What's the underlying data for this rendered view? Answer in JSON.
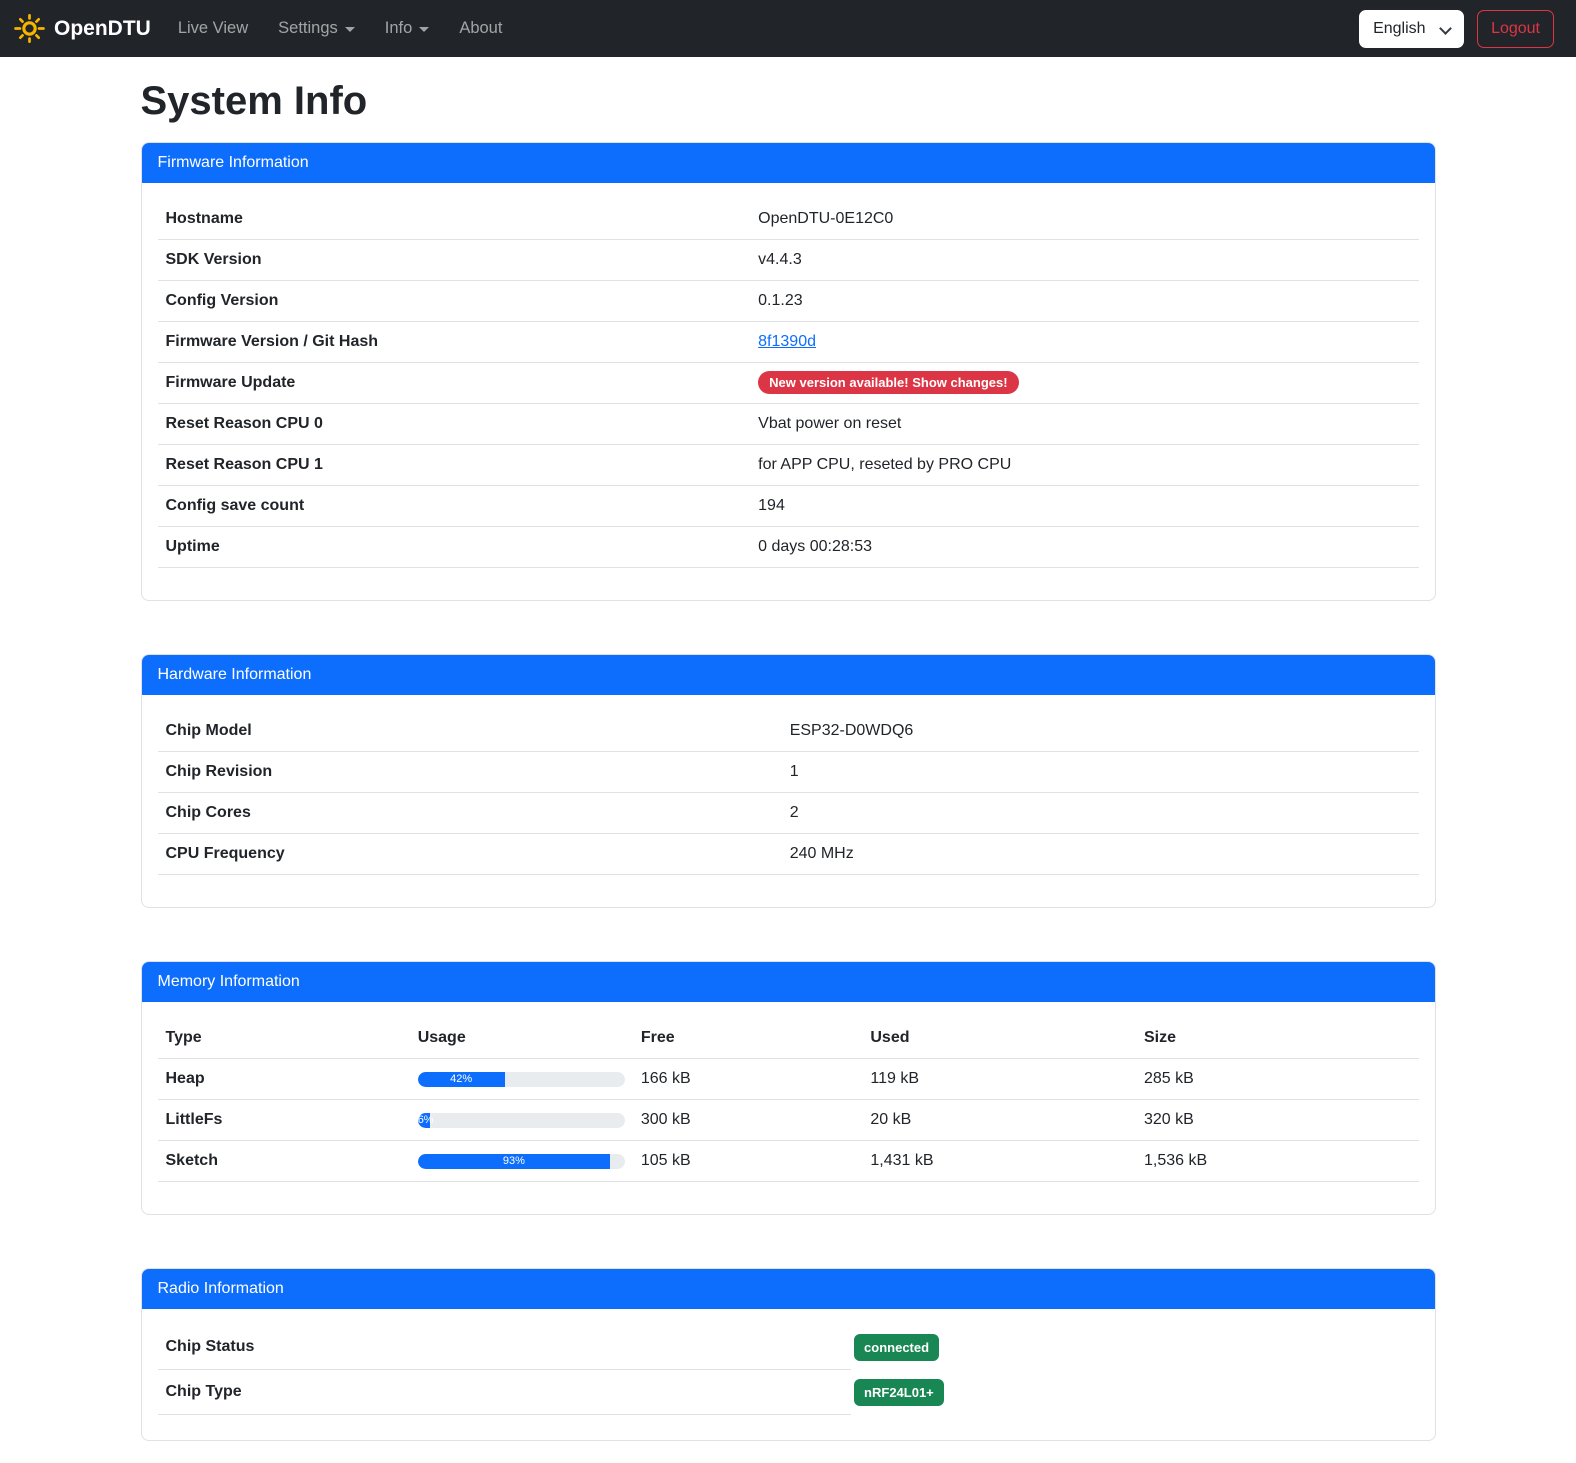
{
  "navbar": {
    "brand": "OpenDTU",
    "items": [
      {
        "label": "Live View",
        "has_caret": false
      },
      {
        "label": "Settings",
        "has_caret": true
      },
      {
        "label": "Info",
        "has_caret": true
      },
      {
        "label": "About",
        "has_caret": false
      }
    ],
    "language_selected": "English",
    "logout_label": "Logout"
  },
  "page": {
    "title": "System Info"
  },
  "firmware_card": {
    "title": "Firmware Information",
    "rows": [
      {
        "label": "Hostname",
        "value": "OpenDTU-0E12C0"
      },
      {
        "label": "SDK Version",
        "value": "v4.4.3"
      },
      {
        "label": "Config Version",
        "value": "0.1.23"
      },
      {
        "label": "Firmware Version / Git Hash",
        "value": "8f1390d",
        "type": "link"
      },
      {
        "label": "Firmware Update",
        "value": "New version available! Show changes!",
        "type": "badge-danger"
      },
      {
        "label": "Reset Reason CPU 0",
        "value": "Vbat power on reset"
      },
      {
        "label": "Reset Reason CPU 1",
        "value": "for APP CPU, reseted by PRO CPU"
      },
      {
        "label": "Config save count",
        "value": "194"
      },
      {
        "label": "Uptime",
        "value": "0 days 00:28:53"
      }
    ]
  },
  "hardware_card": {
    "title": "Hardware Information",
    "rows": [
      {
        "label": "Chip Model",
        "value": "ESP32-D0WDQ6"
      },
      {
        "label": "Chip Revision",
        "value": "1"
      },
      {
        "label": "Chip Cores",
        "value": "2"
      },
      {
        "label": "CPU Frequency",
        "value": "240 MHz"
      }
    ]
  },
  "memory_card": {
    "title": "Memory Information",
    "columns": [
      "Type",
      "Usage",
      "Free",
      "Used",
      "Size"
    ],
    "rows": [
      {
        "type": "Heap",
        "usage_pct": 42,
        "free": "166 kB",
        "used": "119 kB",
        "size": "285 kB"
      },
      {
        "type": "LittleFs",
        "usage_pct": 6,
        "free": "300 kB",
        "used": "20 kB",
        "size": "320 kB"
      },
      {
        "type": "Sketch",
        "usage_pct": 93,
        "free": "105 kB",
        "used": "1,431 kB",
        "size": "1,536 kB"
      }
    ]
  },
  "radio_card": {
    "title": "Radio Information",
    "rows": [
      {
        "label": "Chip Status",
        "badge": "connected"
      },
      {
        "label": "Chip Type",
        "badge": "nRF24L01+"
      }
    ]
  },
  "colors": {
    "primary": "#0d6efd",
    "danger": "#dc3545",
    "success": "#198754",
    "navbar_bg": "#212529",
    "progress_track": "#e9ecef",
    "sun_yellow": "#f7b500"
  }
}
